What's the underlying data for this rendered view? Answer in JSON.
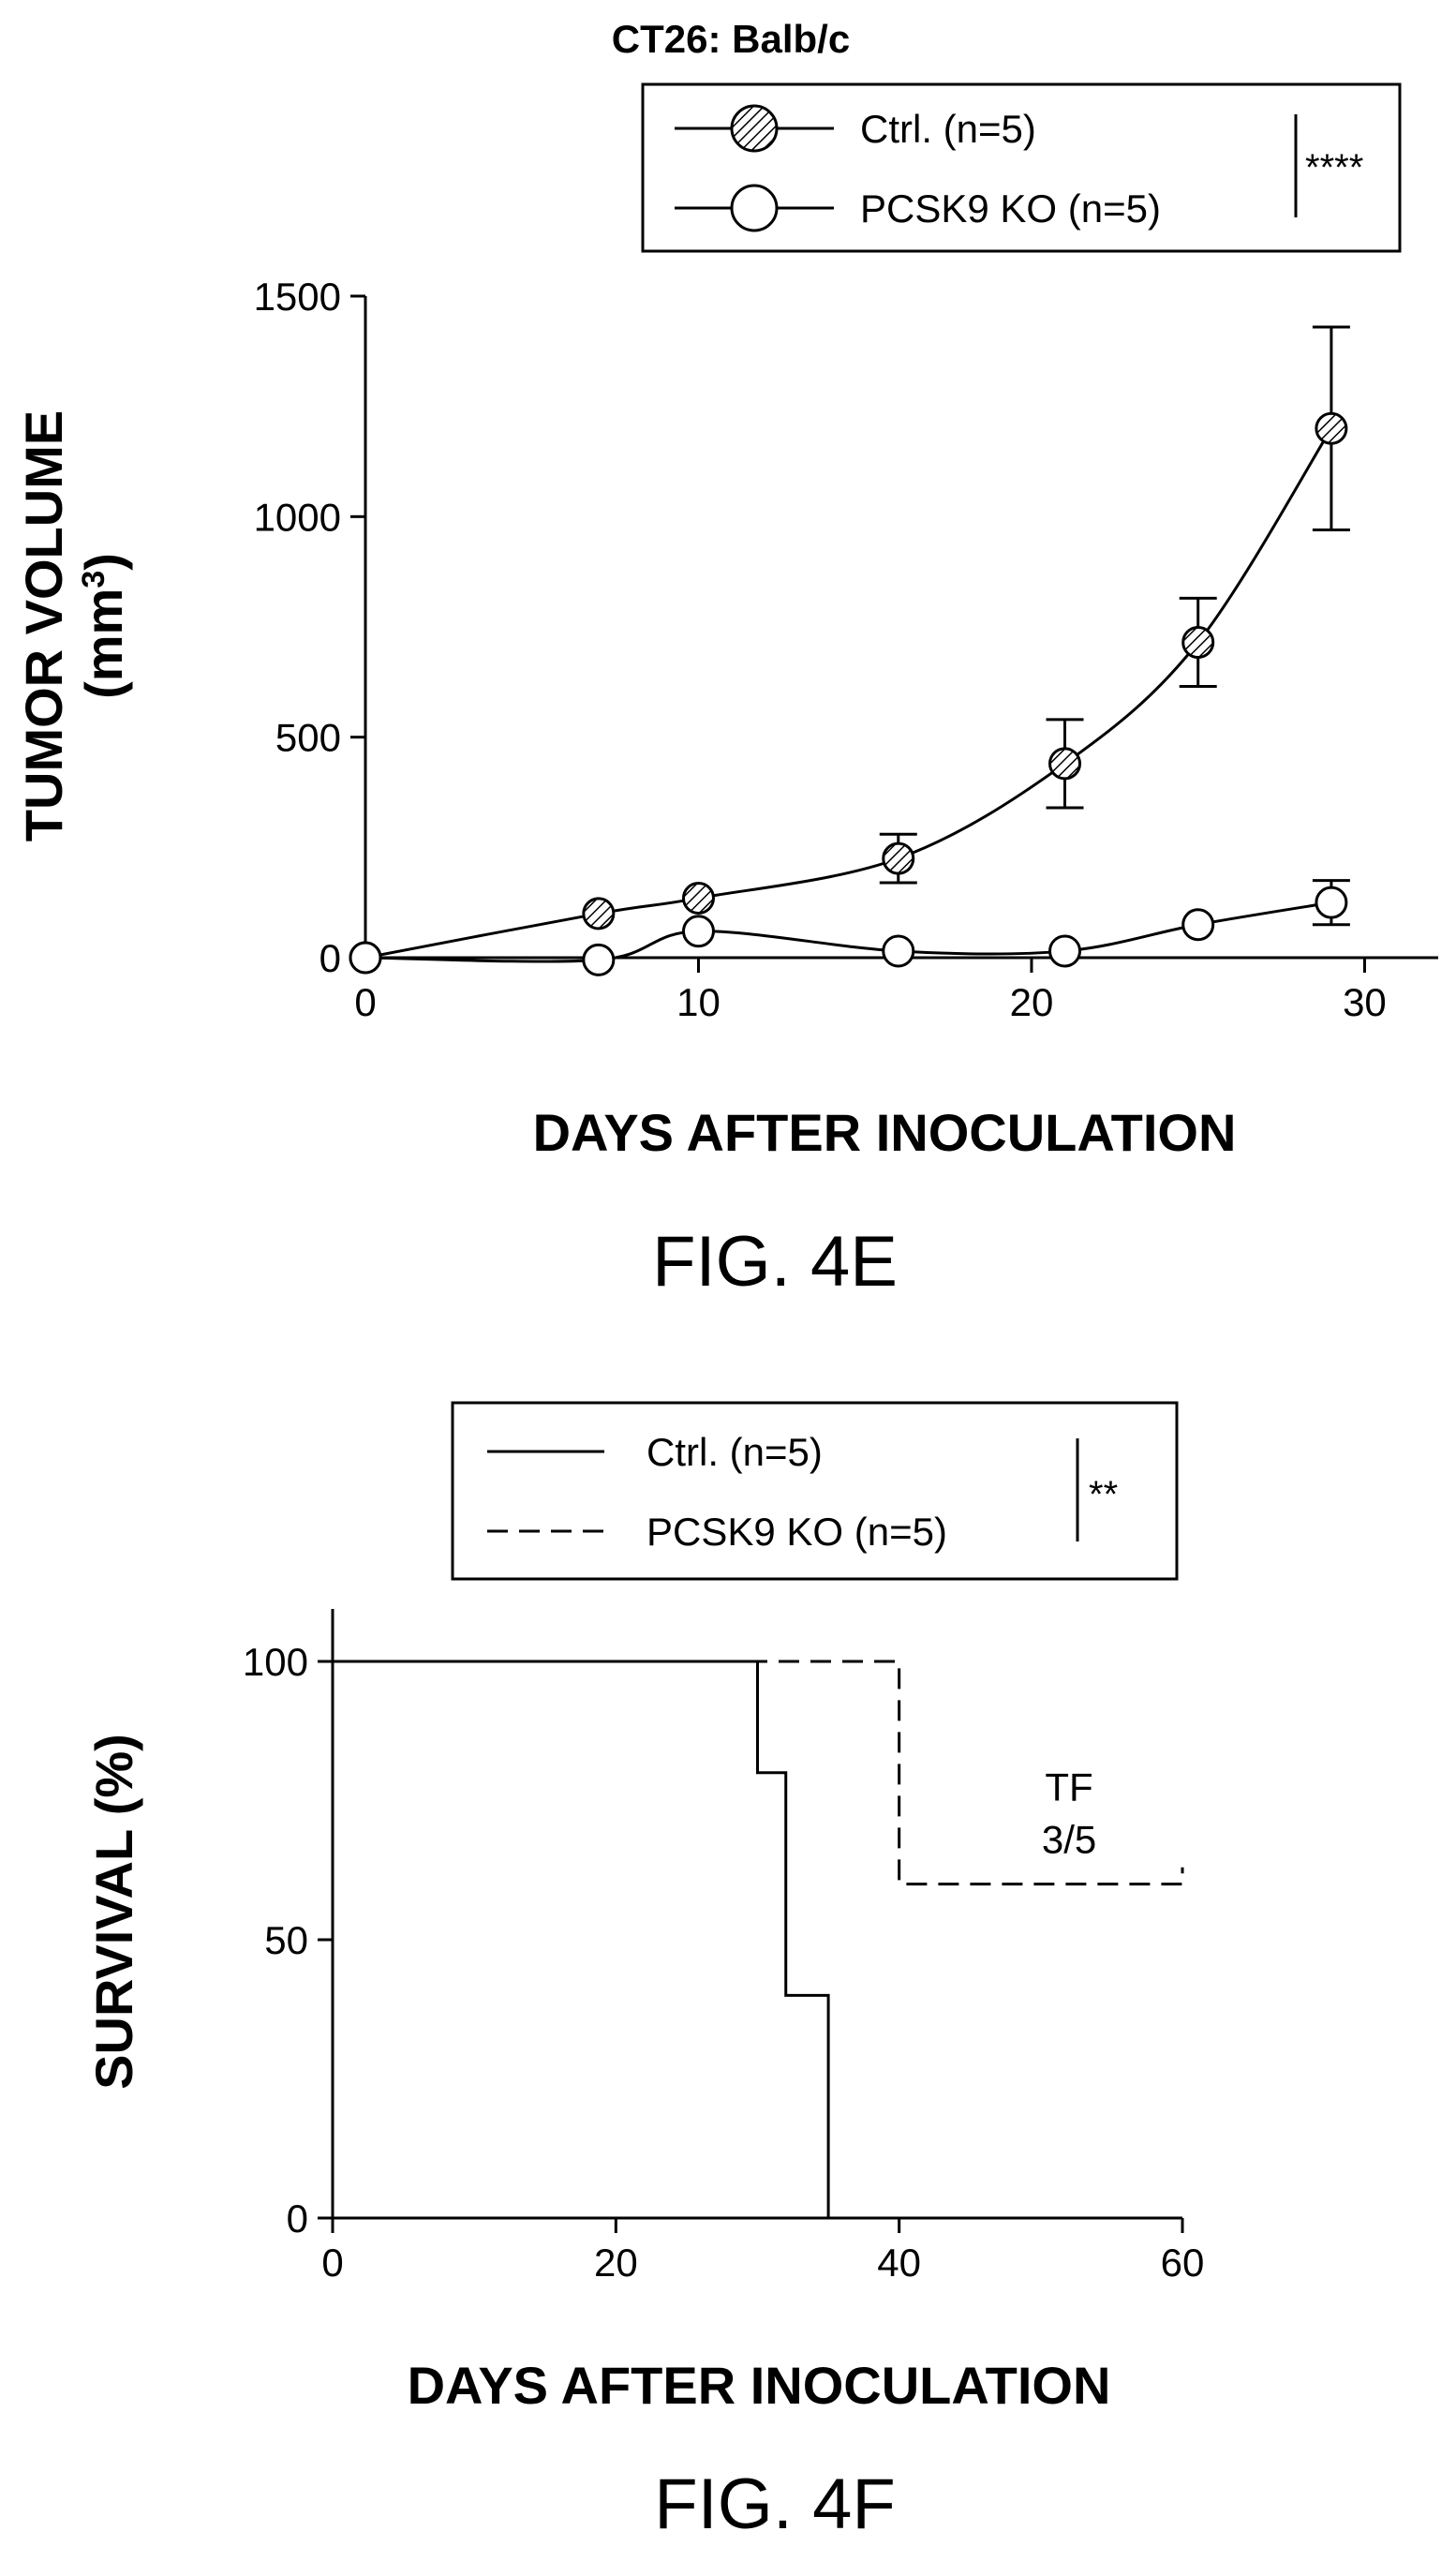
{
  "chart_data": [
    {
      "type": "line",
      "title": "CT26: Balb/c",
      "xlabel": "DAYS AFTER INOCULATION",
      "ylabel_line1": "TUMOR VOLUME",
      "ylabel_line2": "(mm",
      "ylabel_sup": "3",
      "ylabel_close": ")",
      "xlim": [
        0,
        31
      ],
      "ylim": [
        0,
        1500
      ],
      "xticks": [
        0,
        10,
        20,
        30
      ],
      "yticks": [
        0,
        500,
        1000,
        1500
      ],
      "legend_position": "top-right",
      "significance": "****",
      "series": [
        {
          "name": "Ctrl. (n=5)",
          "marker": "hatched-circle",
          "x": [
            0,
            7,
            10,
            16,
            21,
            25,
            29
          ],
          "y": [
            0,
            100,
            135,
            225,
            440,
            715,
            1200
          ],
          "err": [
            0,
            0,
            0,
            55,
            100,
            100,
            230
          ]
        },
        {
          "name": "PCSK9 KO (n=5)",
          "marker": "open-circle",
          "x": [
            0,
            7,
            10,
            16,
            21,
            25,
            29
          ],
          "y": [
            0,
            -5,
            60,
            15,
            15,
            75,
            125
          ],
          "err": [
            0,
            0,
            0,
            0,
            0,
            0,
            50
          ]
        }
      ],
      "caption": "FIG. 4E"
    },
    {
      "type": "line",
      "subtype": "step",
      "xlabel": "DAYS AFTER INOCULATION",
      "ylabel": "SURVIVAL (%)",
      "xlim": [
        0,
        60
      ],
      "ylim": [
        0,
        100
      ],
      "xticks": [
        0,
        20,
        40,
        60
      ],
      "yticks": [
        0,
        50,
        100
      ],
      "legend_position": "top",
      "significance": "**",
      "series": [
        {
          "name": "Ctrl. (n=5)",
          "style": "solid",
          "x": [
            0,
            30,
            30,
            32,
            32,
            35,
            35
          ],
          "y": [
            100,
            100,
            80,
            80,
            40,
            40,
            0
          ]
        },
        {
          "name": "PCSK9 KO (n=5)",
          "style": "dashed",
          "x": [
            0,
            40,
            40,
            60,
            60
          ],
          "y": [
            100,
            100,
            60,
            60,
            63
          ]
        }
      ],
      "annotation_line1": "TF",
      "annotation_line2": "3/5",
      "annotation_xy": [
        52,
        75
      ],
      "caption": "FIG. 4F"
    }
  ]
}
